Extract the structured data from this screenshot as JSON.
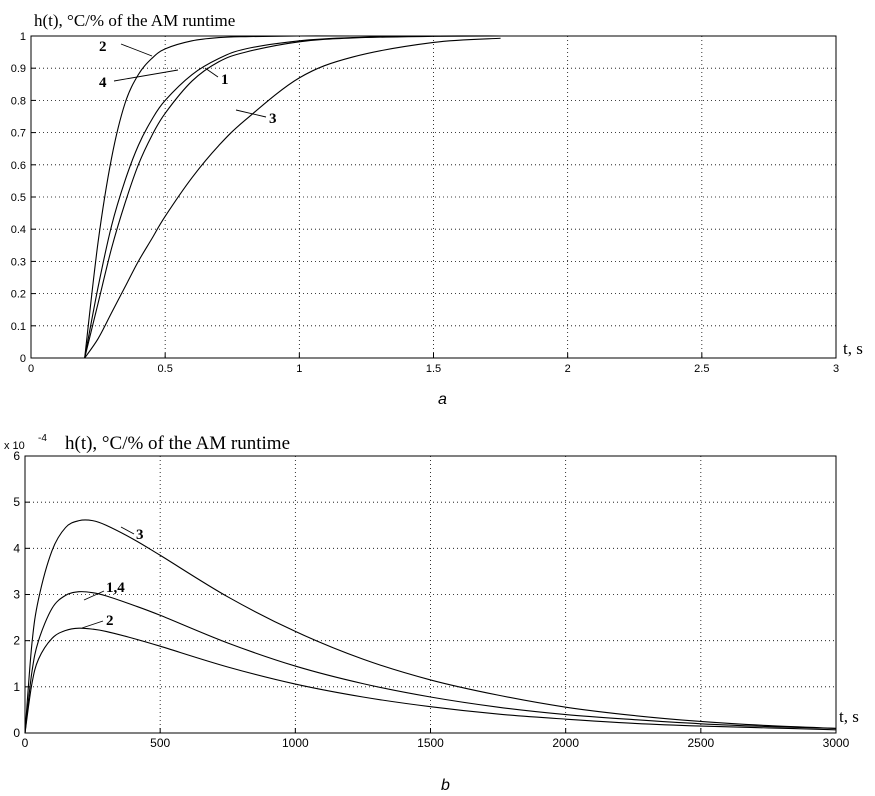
{
  "chart_data": [
    {
      "type": "line",
      "title": "h(t), °C/% of the AM runtime",
      "xlabel": "t,  s",
      "ylabel": "",
      "xlim": [
        0,
        3
      ],
      "ylim": [
        0,
        1
      ],
      "xticks": [
        "0",
        "0.5",
        "1",
        "1.5",
        "2",
        "2.5",
        "3"
      ],
      "yticks": [
        "0",
        "0.1",
        "0.2",
        "0.3",
        "0.4",
        "0.5",
        "0.6",
        "0.7",
        "0.8",
        "0.9",
        "1"
      ],
      "grid": true,
      "caption": "a",
      "x": [
        0.2,
        0.25,
        0.3,
        0.35,
        0.4,
        0.45,
        0.5,
        0.6,
        0.7,
        0.8,
        1.0,
        1.2,
        1.5,
        1.75
      ],
      "series": [
        {
          "name": "2",
          "values": [
            0,
            0.36,
            0.62,
            0.79,
            0.88,
            0.93,
            0.96,
            0.985,
            0.995,
            0.998,
            1,
            1,
            1,
            1
          ]
        },
        {
          "name": "4",
          "values": [
            0,
            0.22,
            0.41,
            0.55,
            0.66,
            0.74,
            0.8,
            0.88,
            0.93,
            0.96,
            0.985,
            0.995,
            1,
            1
          ]
        },
        {
          "name": "1",
          "values": [
            0,
            0.17,
            0.34,
            0.48,
            0.6,
            0.69,
            0.76,
            0.86,
            0.92,
            0.95,
            0.982,
            0.994,
            0.999,
            1
          ]
        },
        {
          "name": "3",
          "values": [
            0,
            0.06,
            0.14,
            0.22,
            0.3,
            0.37,
            0.44,
            0.56,
            0.66,
            0.74,
            0.87,
            0.935,
            0.98,
            0.993
          ]
        }
      ],
      "labels": [
        "2",
        "4",
        "1",
        "3"
      ]
    },
    {
      "type": "line",
      "title": "h(t), °C/% of the AM runtime",
      "xlabel": "t, s",
      "ylabel": "",
      "exponent_label": "x 10",
      "exponent_power": "-4",
      "xlim": [
        0,
        3000
      ],
      "ylim": [
        0,
        6
      ],
      "xticks": [
        "0",
        "500",
        "1000",
        "1500",
        "2000",
        "2500",
        "3000"
      ],
      "yticks": [
        "0",
        "1",
        "2",
        "3",
        "4",
        "5",
        "6"
      ],
      "grid": true,
      "caption": "b",
      "x": [
        0,
        25,
        50,
        100,
        150,
        200,
        250,
        300,
        400,
        500,
        750,
        1000,
        1250,
        1500,
        1750,
        2000,
        2250,
        2500,
        2750,
        3000
      ],
      "series": [
        {
          "name": "3",
          "values": [
            0,
            1.9,
            2.9,
            3.95,
            4.45,
            4.6,
            4.6,
            4.5,
            4.2,
            3.85,
            2.95,
            2.2,
            1.6,
            1.15,
            0.82,
            0.56,
            0.38,
            0.25,
            0.16,
            0.1
          ]
        },
        {
          "name": "1,4",
          "values": [
            0,
            1.3,
            2.0,
            2.7,
            2.98,
            3.06,
            3.04,
            2.97,
            2.77,
            2.55,
            1.95,
            1.45,
            1.07,
            0.78,
            0.56,
            0.4,
            0.29,
            0.2,
            0.14,
            0.1
          ]
        },
        {
          "name": "2",
          "values": [
            0,
            1.05,
            1.6,
            2.05,
            2.22,
            2.27,
            2.25,
            2.2,
            2.05,
            1.88,
            1.43,
            1.06,
            0.78,
            0.57,
            0.41,
            0.3,
            0.21,
            0.15,
            0.11,
            0.07
          ]
        }
      ],
      "labels": [
        "3",
        "1,4",
        "2"
      ]
    }
  ]
}
